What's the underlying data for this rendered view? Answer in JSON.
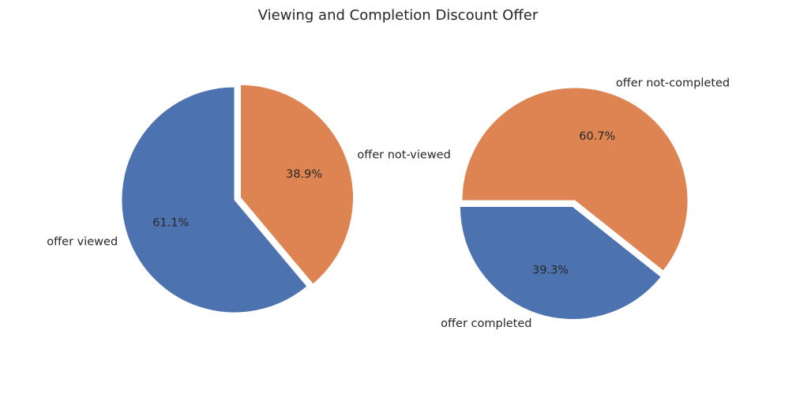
{
  "title": "Viewing and Completion Discount Offer",
  "chart_data": [
    {
      "type": "pie",
      "slices": [
        {
          "label": "offer viewed",
          "value": 61.1,
          "pct_label": "61.1%",
          "color": "#4c72b0",
          "exploded": false
        },
        {
          "label": "offer not-viewed",
          "value": 38.9,
          "pct_label": "38.9%",
          "color": "#dd8452",
          "exploded": true
        }
      ],
      "start_angle_deg": 90,
      "direction": "counterclockwise"
    },
    {
      "type": "pie",
      "slices": [
        {
          "label": "offer completed",
          "value": 39.3,
          "pct_label": "39.3%",
          "color": "#4c72b0",
          "exploded": true
        },
        {
          "label": "offer not-completed",
          "value": 60.7,
          "pct_label": "60.7%",
          "color": "#dd8452",
          "exploded": false
        }
      ],
      "start_angle_deg": 180,
      "direction": "counterclockwise"
    }
  ]
}
